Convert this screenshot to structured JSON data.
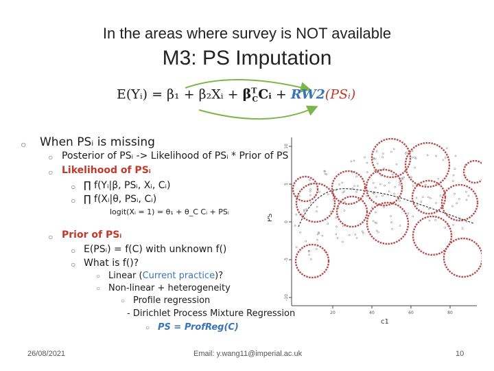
{
  "title": {
    "line1": "In the areas where survey is NOT available",
    "line2": "M3: PS Imputation"
  },
  "equation": {
    "lhs": "E(Yᵢ) = β₁ + β₂Xᵢ + ",
    "beta_term": "β",
    "beta_sup": "T",
    "beta_sub": "C",
    "c_term": "Cᵢ",
    "plus": " + ",
    "rw2": "RW2",
    "ps_arg": "(PSᵢ)"
  },
  "bullets": {
    "b1": "When PSᵢ is missing",
    "b1_1": "Posterior of PSᵢ -> Likelihood of PSᵢ * Prior of PS",
    "b1_2": "Likelihood of PSᵢ",
    "b1_2_1": "∏ f(Yᵢ|β, PSᵢ, Xᵢ, Cᵢ)",
    "b1_2_2": "∏ f(Xᵢ|θ, PSᵢ, Cᵢ)",
    "b1_2_3": "logit(Xᵢ = 1) = θ₁ + θ_C Cᵢ + PSᵢ",
    "b1_3": "Prior of PSᵢ",
    "b1_3_1": "E(PSᵢ) = f(C)   with unknown f()",
    "b1_3_2": "What is f()?",
    "b1_3_2_1_pre": "Linear (",
    "b1_3_2_1_link": "Current practice",
    "b1_3_2_1_post": ")?",
    "b1_3_2_2": "Non-linear + heterogeneity",
    "b1_3_2_2_1": "Profile regression",
    "b1_3_2_2_2": "- Dirichlet Process Mixture Regression",
    "b1_3_2_2_3": "PS = ProfReg(C)"
  },
  "plot": {
    "ylabel": "PS",
    "xlabel": "c1",
    "xticks": [
      "20",
      "40",
      "60",
      "80"
    ],
    "yticks": [
      "10",
      "5",
      "0",
      "-5",
      "-10"
    ]
  },
  "footer": {
    "date": "26/08/2021",
    "email": "Email: y.wang11@imperial.ac.uk",
    "page": "10"
  },
  "colors": {
    "arrow": "#7ab648",
    "circle": "#b54a4a",
    "accent_red": "#c0392b",
    "accent_blue": "#3b74b5"
  }
}
